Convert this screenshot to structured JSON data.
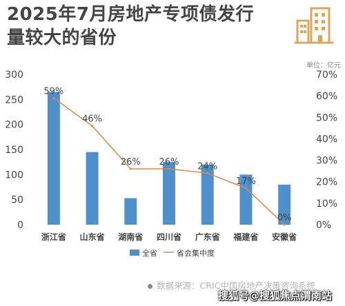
{
  "title": {
    "line1": "2025年7月房地产专项债发行",
    "line2": "量较大的省份"
  },
  "unit_label": "单位：亿元",
  "source": "数据来源：CRIC中国房地产决策咨询系统",
  "watermark": "搜狐号@搜狐焦点渭南站",
  "logo_icon": "city-buildings-icon",
  "colors": {
    "bar": "#4f90cc",
    "line": "#d9884a",
    "title": "#444444",
    "logo": "#e0a35a",
    "axis_text": "#444444"
  },
  "chart_data": {
    "type": "bar",
    "title": "",
    "categories": [
      "浙江省",
      "山东省",
      "湖南省",
      "四川省",
      "广东省",
      "福建省",
      "安徽省"
    ],
    "series": [
      {
        "name": "全省",
        "type": "bar",
        "axis": "left",
        "values": [
          265,
          145,
          53,
          125,
          120,
          100,
          80
        ]
      },
      {
        "name": "省会集中度",
        "type": "line",
        "axis": "right",
        "values": [
          59,
          46,
          26,
          26,
          24,
          17,
          0
        ],
        "labels": [
          "59%",
          "46%",
          "26%",
          "26%",
          "24%",
          "17%",
          "0%"
        ]
      }
    ],
    "y_left": {
      "lim": [
        0,
        300
      ],
      "ticks": [
        0,
        50,
        100,
        150,
        200,
        250,
        300
      ]
    },
    "y_right": {
      "lim": [
        0,
        70
      ],
      "ticks": [
        0,
        10,
        20,
        30,
        40,
        50,
        60,
        70
      ],
      "tick_labels": [
        "0%",
        "10%",
        "20%",
        "30%",
        "40%",
        "50%",
        "60%",
        "70%"
      ]
    },
    "grid": false,
    "legend": "bottom-center"
  }
}
